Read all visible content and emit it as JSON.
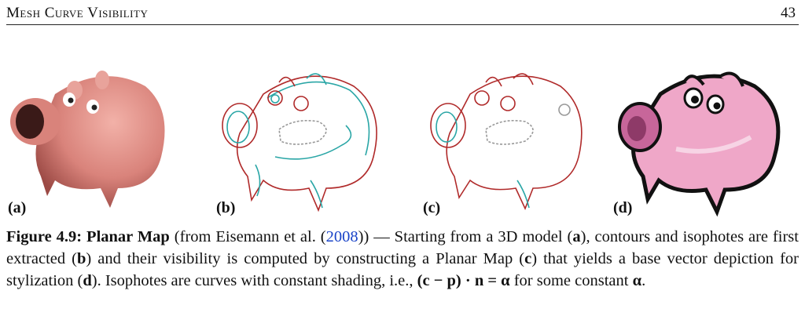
{
  "header": {
    "running_title": "Mesh Curve Visibility",
    "page_number": "43"
  },
  "figure": {
    "panels": [
      {
        "label": "(a)",
        "icon": "shaded-pig-illustration"
      },
      {
        "label": "(b)",
        "icon": "contour-isophote-pig-illustration"
      },
      {
        "label": "(c)",
        "icon": "planar-map-pig-illustration"
      },
      {
        "label": "(d)",
        "icon": "stylized-pig-illustration"
      }
    ],
    "colors": {
      "shaded_pig": "#e08a84",
      "contour": "#b02a2a",
      "isophote": "#2aa6a6",
      "stylized_pig": "#efa7c8"
    }
  },
  "caption": {
    "figure_label": "Figure 4.9:",
    "title": "Planar Map",
    "text_1": " (from Eisemann et al. (",
    "citation_year": "2008",
    "text_2": ")) — Starting from a 3D model (",
    "bold_a": "a",
    "text_3": "), contours and isophotes are first extracted (",
    "bold_b": "b",
    "text_4": ") and their visibility is computed by constructing a Planar Map (",
    "bold_c": "c",
    "text_5": ") that yields a base vector depiction for stylization (",
    "bold_d": "d",
    "text_6": "). Isophotes are curves with constant shading, i.e., ",
    "formula": "(c − p) · n = α",
    "text_7": " for some constant ",
    "alpha": "α",
    "text_8": "."
  }
}
